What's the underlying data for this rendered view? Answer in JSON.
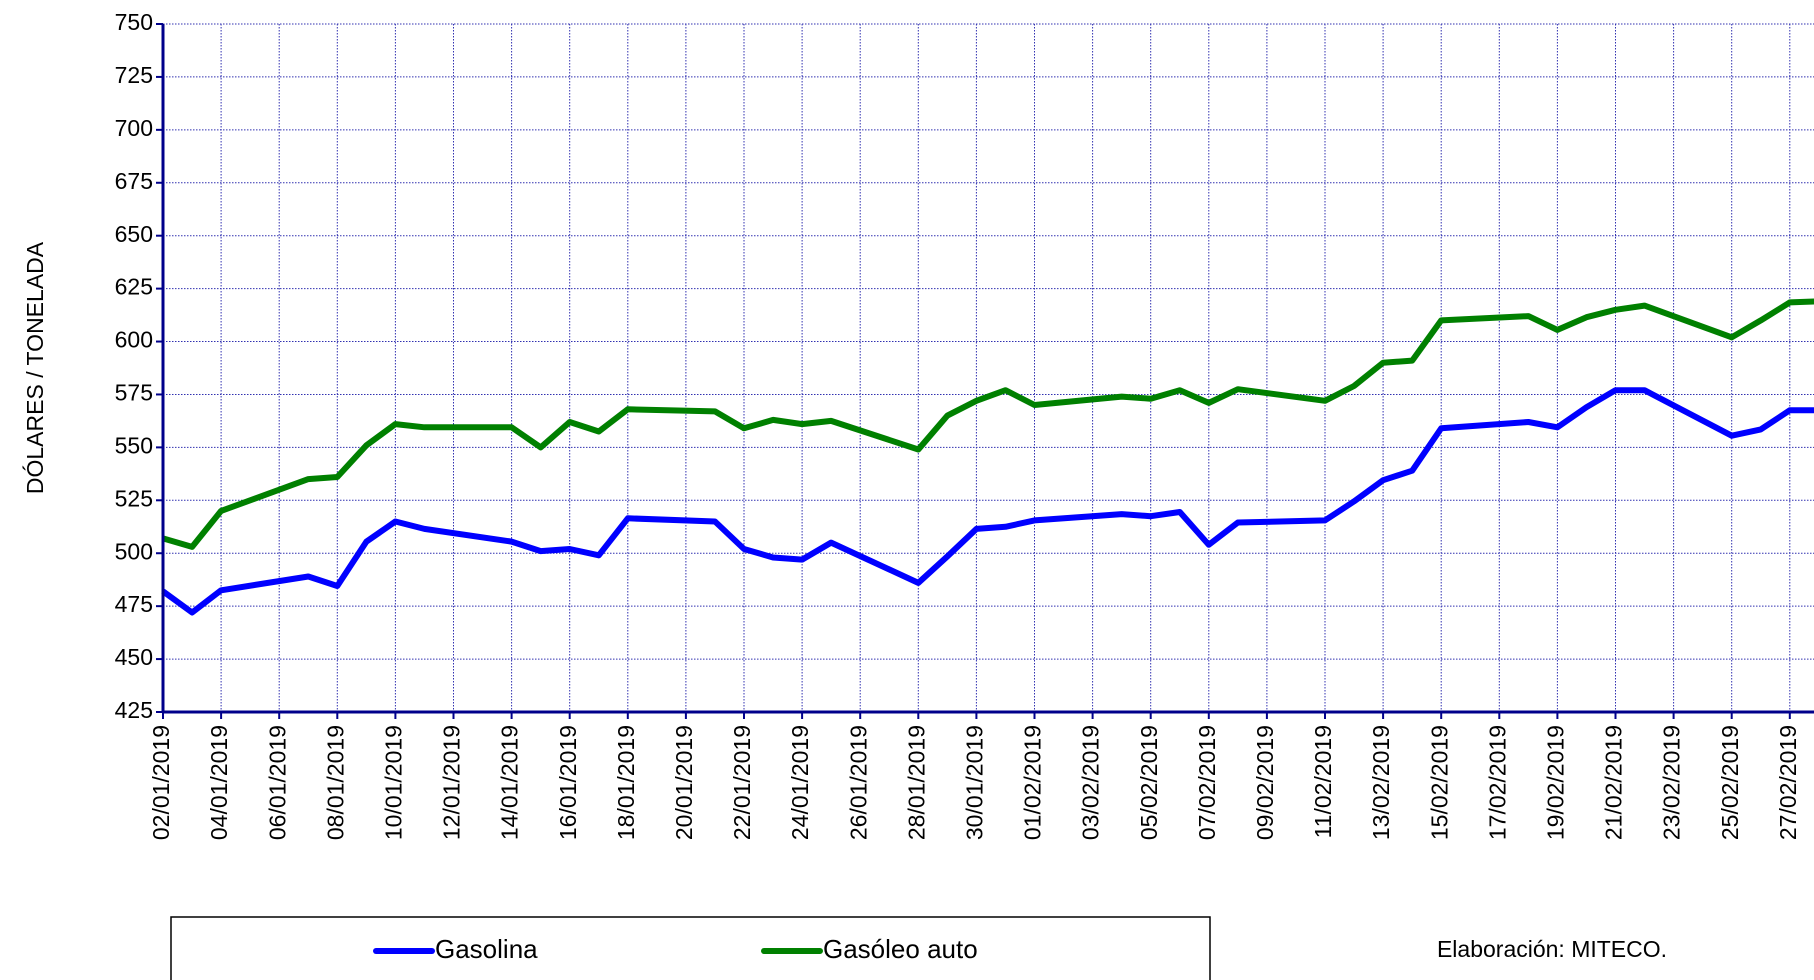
{
  "chart_data": {
    "type": "line",
    "y_label": "DÓLARES / TONELADA",
    "source": "Elaboración: MITECO.",
    "x": [
      "02/01/2019",
      "03/01/2019",
      "04/01/2019",
      "07/01/2019",
      "08/01/2019",
      "09/01/2019",
      "10/01/2019",
      "11/01/2019",
      "14/01/2019",
      "15/01/2019",
      "16/01/2019",
      "17/01/2019",
      "18/01/2019",
      "21/01/2019",
      "22/01/2019",
      "23/01/2019",
      "24/01/2019",
      "25/01/2019",
      "28/01/2019",
      "29/01/2019",
      "30/01/2019",
      "31/01/2019",
      "01/02/2019",
      "04/02/2019",
      "05/02/2019",
      "06/02/2019",
      "07/02/2019",
      "08/02/2019",
      "11/02/2019",
      "12/02/2019",
      "13/02/2019",
      "14/02/2019",
      "15/02/2019",
      "18/02/2019",
      "19/02/2019",
      "20/02/2019",
      "21/02/2019",
      "22/02/2019",
      "25/02/2019",
      "26/02/2019",
      "27/02/2019",
      "28/02/2019"
    ],
    "series": [
      {
        "name": "Gasolina",
        "color": "#0000ff",
        "values": [
          482,
          472,
          482.5,
          489,
          484.5,
          505.5,
          515,
          511.5,
          505.5,
          501,
          502,
          499,
          516.5,
          515,
          502,
          498,
          497,
          505,
          486,
          498.5,
          511.5,
          512.5,
          515.5,
          518.5,
          517.5,
          519.5,
          504,
          514.5,
          515.5,
          524.5,
          534.5,
          539,
          559,
          562,
          559.5,
          569,
          577,
          577,
          555.5,
          558.5,
          567.5,
          567.5
        ]
      },
      {
        "name": "Gasóleo auto",
        "color": "#008000",
        "values": [
          507,
          503,
          520,
          535,
          536,
          551,
          561,
          559.5,
          559.5,
          550,
          562,
          557.5,
          568,
          567,
          559,
          563,
          561,
          562.5,
          549,
          565,
          572,
          577,
          570,
          574,
          573,
          577,
          571,
          577.5,
          572,
          579,
          590,
          591,
          610,
          612,
          605.5,
          611.5,
          615,
          617,
          602,
          610,
          618.5,
          619
        ]
      }
    ],
    "ylim": [
      425,
      750
    ],
    "yticks": [
      425,
      450,
      475,
      500,
      525,
      550,
      575,
      600,
      625,
      650,
      675,
      700,
      725,
      750
    ],
    "xticks": [
      "02/01/2019",
      "04/01/2019",
      "06/01/2019",
      "08/01/2019",
      "10/01/2019",
      "12/01/2019",
      "14/01/2019",
      "16/01/2019",
      "18/01/2019",
      "20/01/2019",
      "22/01/2019",
      "24/01/2019",
      "26/01/2019",
      "28/01/2019",
      "30/01/2019",
      "01/02/2019",
      "03/02/2019",
      "05/02/2019",
      "07/02/2019",
      "09/02/2019",
      "11/02/2019",
      "13/02/2019",
      "15/02/2019",
      "17/02/2019",
      "19/02/2019",
      "21/02/2019",
      "23/02/2019",
      "25/02/2019",
      "27/02/2019"
    ],
    "grid": true
  }
}
